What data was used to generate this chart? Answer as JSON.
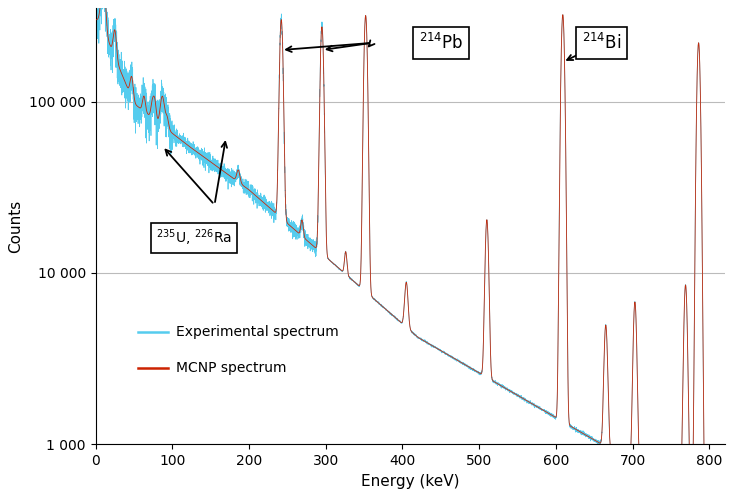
{
  "xlabel": "Energy (keV)",
  "ylabel": "Counts",
  "xlim": [
    0,
    820
  ],
  "ylim_log": [
    1000,
    350000
  ],
  "yticks": [
    1000,
    10000,
    100000
  ],
  "ytick_labels": [
    "1 000",
    "10 000",
    "100 000"
  ],
  "xticks": [
    0,
    100,
    200,
    300,
    400,
    500,
    600,
    700,
    800
  ],
  "exp_color": "#55ccee",
  "mcnp_color": "#cc2200",
  "grid_color": "#bbbbbb",
  "legend_exp_text": "Experimental spectrum",
  "legend_mcnp_text": "MCNP spectrum",
  "background_color": "#ffffff",
  "figsize": [
    7.33,
    4.97
  ],
  "dpi": 100
}
